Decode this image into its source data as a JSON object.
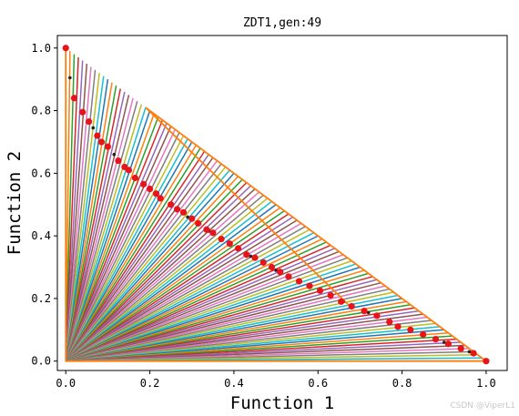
{
  "chart_data": {
    "type": "scatter",
    "title": "ZDT1,gen:49",
    "xlabel": "Function 1",
    "ylabel": "Function 2",
    "xlim": [
      -0.02,
      1.05
    ],
    "ylim": [
      -0.03,
      1.04
    ],
    "xticks": [
      "0.0",
      "0.2",
      "0.4",
      "0.6",
      "0.8",
      "1.0"
    ],
    "yticks": [
      "0.0",
      "0.2",
      "0.4",
      "0.6",
      "0.8",
      "1.0"
    ],
    "grid": false,
    "reference_lines": {
      "count": 100,
      "origin": [
        0,
        0
      ],
      "colors": [
        "#1f77b4",
        "#ff7f0e",
        "#2ca02c",
        "#d62728",
        "#9467bd",
        "#8c564b",
        "#e377c2",
        "#7f7f7f",
        "#bcbd22",
        "#17becf"
      ]
    },
    "highlight_line": {
      "color": "#ff7f0e",
      "points": [
        [
          0.0,
          1.0
        ],
        [
          0.0,
          0.0
        ],
        [
          1.0,
          0.0
        ],
        [
          0.19,
          0.81
        ],
        [
          0.68,
          0.17
        ]
      ]
    },
    "pareto_points": {
      "color": "#e8141a",
      "x": [
        0.0,
        0.02,
        0.04,
        0.055,
        0.075,
        0.085,
        0.1,
        0.125,
        0.14,
        0.15,
        0.165,
        0.185,
        0.2,
        0.215,
        0.225,
        0.25,
        0.265,
        0.28,
        0.3,
        0.315,
        0.335,
        0.35,
        0.37,
        0.39,
        0.41,
        0.43,
        0.45,
        0.47,
        0.49,
        0.51,
        0.53,
        0.555,
        0.58,
        0.605,
        0.63,
        0.655,
        0.68,
        0.71,
        0.74,
        0.77,
        0.79,
        0.82,
        0.85,
        0.88,
        0.91,
        0.94,
        0.97,
        1.0
      ],
      "y": [
        1.0,
        0.84,
        0.795,
        0.765,
        0.72,
        0.7,
        0.685,
        0.64,
        0.62,
        0.61,
        0.585,
        0.565,
        0.55,
        0.535,
        0.52,
        0.5,
        0.485,
        0.475,
        0.455,
        0.44,
        0.42,
        0.41,
        0.39,
        0.375,
        0.36,
        0.34,
        0.33,
        0.315,
        0.3,
        0.285,
        0.27,
        0.255,
        0.24,
        0.225,
        0.21,
        0.19,
        0.175,
        0.16,
        0.145,
        0.125,
        0.11,
        0.1,
        0.085,
        0.07,
        0.055,
        0.04,
        0.025,
        0.0
      ]
    },
    "dark_points": {
      "color": "#222222",
      "x": [
        0.01,
        0.065,
        0.115,
        0.2,
        0.29,
        0.34,
        0.44,
        0.5,
        0.58,
        0.66,
        0.72,
        0.82,
        0.9,
        0.96
      ],
      "y": [
        0.905,
        0.745,
        0.66,
        0.545,
        0.46,
        0.415,
        0.335,
        0.29,
        0.245,
        0.19,
        0.155,
        0.095,
        0.06,
        0.03
      ]
    }
  },
  "watermark": "CSDN @ViperL1"
}
